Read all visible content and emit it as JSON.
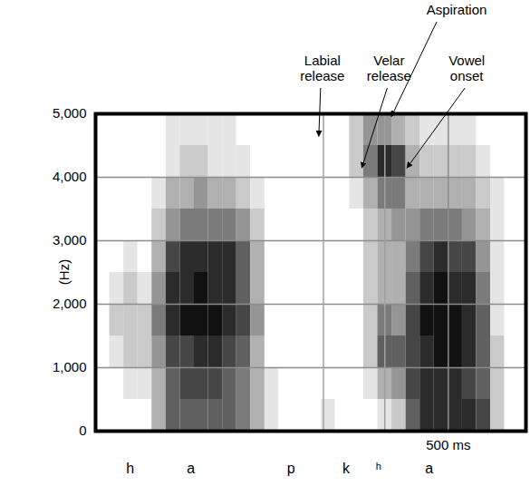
{
  "chart_data": {
    "type": "heatmap",
    "ylabel": "(Hz)",
    "xlim": [
      0,
      610
    ],
    "xticks": [
      {
        "value": 500,
        "label": "500 ms"
      }
    ],
    "ylim": [
      0,
      5000
    ],
    "yticks": [
      0,
      {
        "value": 1000,
        "label": "1,000"
      },
      {
        "value": 2000,
        "label": "2,000"
      },
      {
        "value": 3000,
        "label": "3,000"
      },
      {
        "value": 4000,
        "label": "4,000"
      },
      {
        "value": 5000,
        "label": "5,000"
      }
    ],
    "grid": true,
    "tick_labels": true,
    "color": "#111111",
    "zlim": [
      0,
      9
    ],
    "time_edges": [
      0,
      20,
      40,
      60,
      80,
      100,
      120,
      140,
      160,
      180,
      200,
      220,
      240,
      260,
      280,
      300,
      320,
      340,
      360,
      380,
      400,
      420,
      440,
      460,
      480,
      500,
      520,
      540,
      560,
      580,
      600
    ],
    "freq_edges": [
      0,
      500,
      1000,
      1500,
      2000,
      2500,
      3000,
      3500,
      4000,
      4500,
      5000
    ],
    "cells": [
      [
        0,
        0,
        0,
        0,
        3,
        6,
        6,
        6,
        6,
        6,
        5,
        3,
        1,
        0,
        0,
        0,
        1,
        0,
        0,
        0,
        1,
        2,
        6,
        8,
        8,
        8,
        8,
        7,
        2,
        0
      ],
      [
        0,
        0,
        1,
        1,
        3,
        6,
        7,
        7,
        7,
        6,
        5,
        3,
        1,
        0,
        0,
        0,
        0,
        0,
        0,
        1,
        3,
        4,
        7,
        8,
        8,
        8,
        7,
        6,
        2,
        0
      ],
      [
        0,
        1,
        2,
        2,
        4,
        7,
        7,
        8,
        8,
        7,
        6,
        3,
        0,
        0,
        0,
        0,
        0,
        0,
        0,
        2,
        6,
        6,
        7,
        8,
        9,
        9,
        8,
        6,
        2,
        0
      ],
      [
        0,
        2,
        2,
        2,
        5,
        8,
        9,
        9,
        9,
        8,
        7,
        4,
        0,
        0,
        0,
        0,
        0,
        0,
        0,
        2,
        5,
        4,
        7,
        9,
        9,
        9,
        8,
        6,
        1,
        0
      ],
      [
        0,
        1,
        2,
        1,
        4,
        8,
        8,
        9,
        8,
        8,
        6,
        3,
        0,
        0,
        0,
        0,
        0,
        0,
        0,
        2,
        3,
        3,
        6,
        8,
        9,
        8,
        8,
        5,
        1,
        0
      ],
      [
        0,
        0,
        1,
        0,
        3,
        7,
        8,
        8,
        8,
        8,
        6,
        3,
        0,
        0,
        0,
        0,
        0,
        0,
        0,
        2,
        3,
        3,
        5,
        7,
        8,
        7,
        7,
        4,
        1,
        0
      ],
      [
        0,
        0,
        0,
        0,
        2,
        4,
        5,
        5,
        5,
        5,
        4,
        2,
        0,
        0,
        0,
        0,
        0,
        0,
        0,
        2,
        3,
        4,
        4,
        5,
        5,
        5,
        4,
        3,
        1,
        0
      ],
      [
        0,
        0,
        0,
        0,
        1,
        3,
        3,
        4,
        3,
        3,
        2,
        1,
        0,
        0,
        0,
        0,
        0,
        0,
        1,
        3,
        5,
        5,
        3,
        3,
        3,
        3,
        3,
        2,
        1,
        0
      ],
      [
        0,
        0,
        0,
        0,
        0,
        1,
        2,
        2,
        1,
        1,
        1,
        0,
        0,
        0,
        0,
        0,
        0,
        0,
        2,
        5,
        8,
        7,
        3,
        2,
        2,
        2,
        2,
        1,
        0,
        0
      ],
      [
        0,
        0,
        0,
        0,
        0,
        1,
        1,
        1,
        1,
        1,
        0,
        0,
        0,
        0,
        0,
        0,
        0,
        0,
        2,
        4,
        4,
        3,
        2,
        1,
        1,
        1,
        1,
        0,
        0,
        0
      ]
    ],
    "marker_lines": [
      323,
      410
    ],
    "segments": [
      {
        "label": "h",
        "time": 49
      },
      {
        "label": "a",
        "time": 135
      },
      {
        "label": "p",
        "time": 277
      },
      {
        "label": "k",
        "time": 355
      },
      {
        "label": "ʰ",
        "time": 401
      },
      {
        "label": "a",
        "time": 473
      }
    ],
    "annotations": [
      {
        "text": "Labial release",
        "time": 317,
        "freq": 4640
      },
      {
        "text": "Velar release",
        "time": 378,
        "freq": 4140
      },
      {
        "text": "Aspiration",
        "time": 420,
        "freq": 4950
      },
      {
        "text": "Vowel onset",
        "time": 442,
        "freq": 4140
      }
    ]
  }
}
